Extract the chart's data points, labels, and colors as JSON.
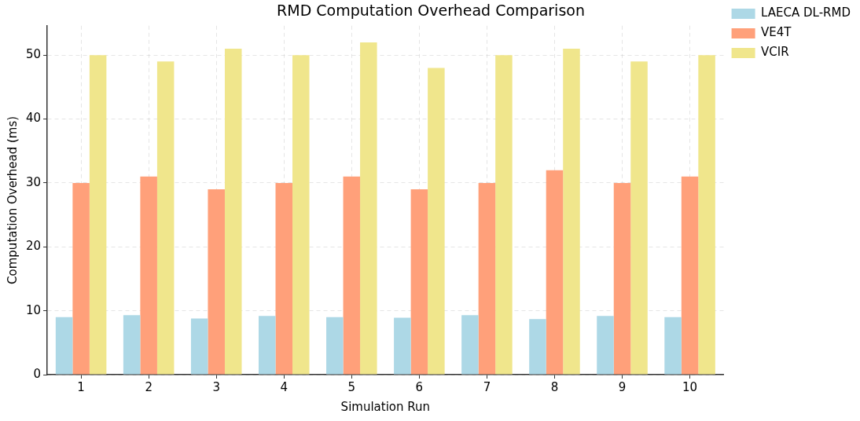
{
  "chart_data": {
    "type": "bar",
    "title": "RMD Computation Overhead Comparison",
    "xlabel": "Simulation Run",
    "ylabel": "Computation Overhead (ms)",
    "categories": [
      "1",
      "2",
      "3",
      "4",
      "5",
      "6",
      "7",
      "8",
      "9",
      "10"
    ],
    "series": [
      {
        "name": "LAECA DL-RMD",
        "color": "#add8e6",
        "values": [
          9.0,
          9.3,
          8.8,
          9.2,
          9.0,
          8.9,
          9.3,
          8.7,
          9.2,
          9.0
        ]
      },
      {
        "name": "VE4T",
        "color": "#ffa07a",
        "values": [
          30,
          31,
          29,
          30,
          31,
          29,
          30,
          32,
          30,
          31
        ]
      },
      {
        "name": "VCIR",
        "color": "#f0e68c",
        "values": [
          50,
          49,
          51,
          50,
          52,
          48,
          50,
          51,
          49,
          50
        ]
      }
    ],
    "ylim": [
      0,
      54.6
    ],
    "yticks": [
      0,
      10,
      20,
      30,
      40,
      50
    ],
    "grid": true,
    "legend": "top right"
  }
}
